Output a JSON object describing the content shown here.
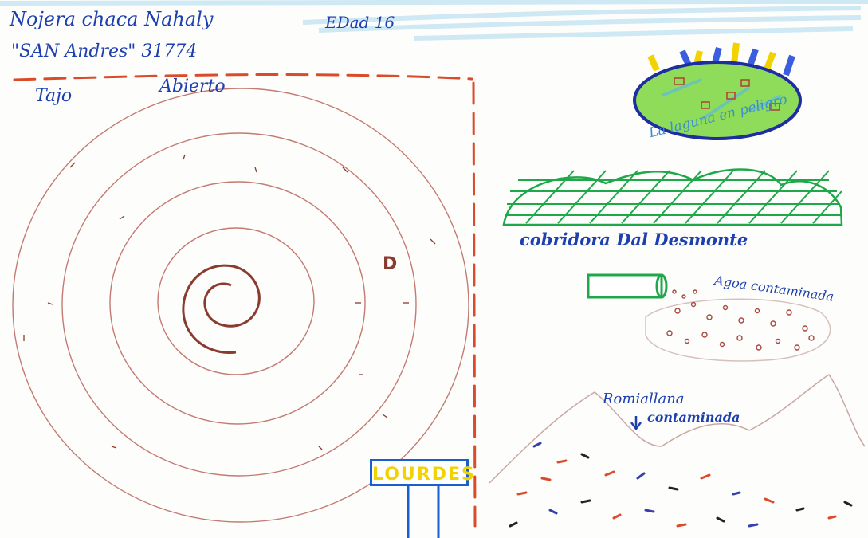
{
  "header": {
    "line1": "Nojera  chaca  Nahaly",
    "edad": "EDad  16",
    "line2": "\"SAN  Andres\" 31774"
  },
  "pit": {
    "label_a": "Tajo",
    "label_b": "Abierto",
    "mark": "D"
  },
  "lagoon": {
    "label": "La  laguna  en  peligro"
  },
  "sieve": {
    "label": "cobridora  Dal  Desmonte"
  },
  "water": {
    "label": "Agoa  contaminada"
  },
  "mountain": {
    "label_a": "Romiallana",
    "label_b": "contaminada"
  },
  "sign": {
    "label": "LOURDES"
  },
  "colors": {
    "ink_blue": "#1d3fb0",
    "spiral_brown": "#8a3b30",
    "boundary_red": "#d94b2b",
    "sieve_green": "#1fa84a",
    "lagoon_green": "#8fdc5a",
    "sign_yellow": "#f2d200"
  }
}
